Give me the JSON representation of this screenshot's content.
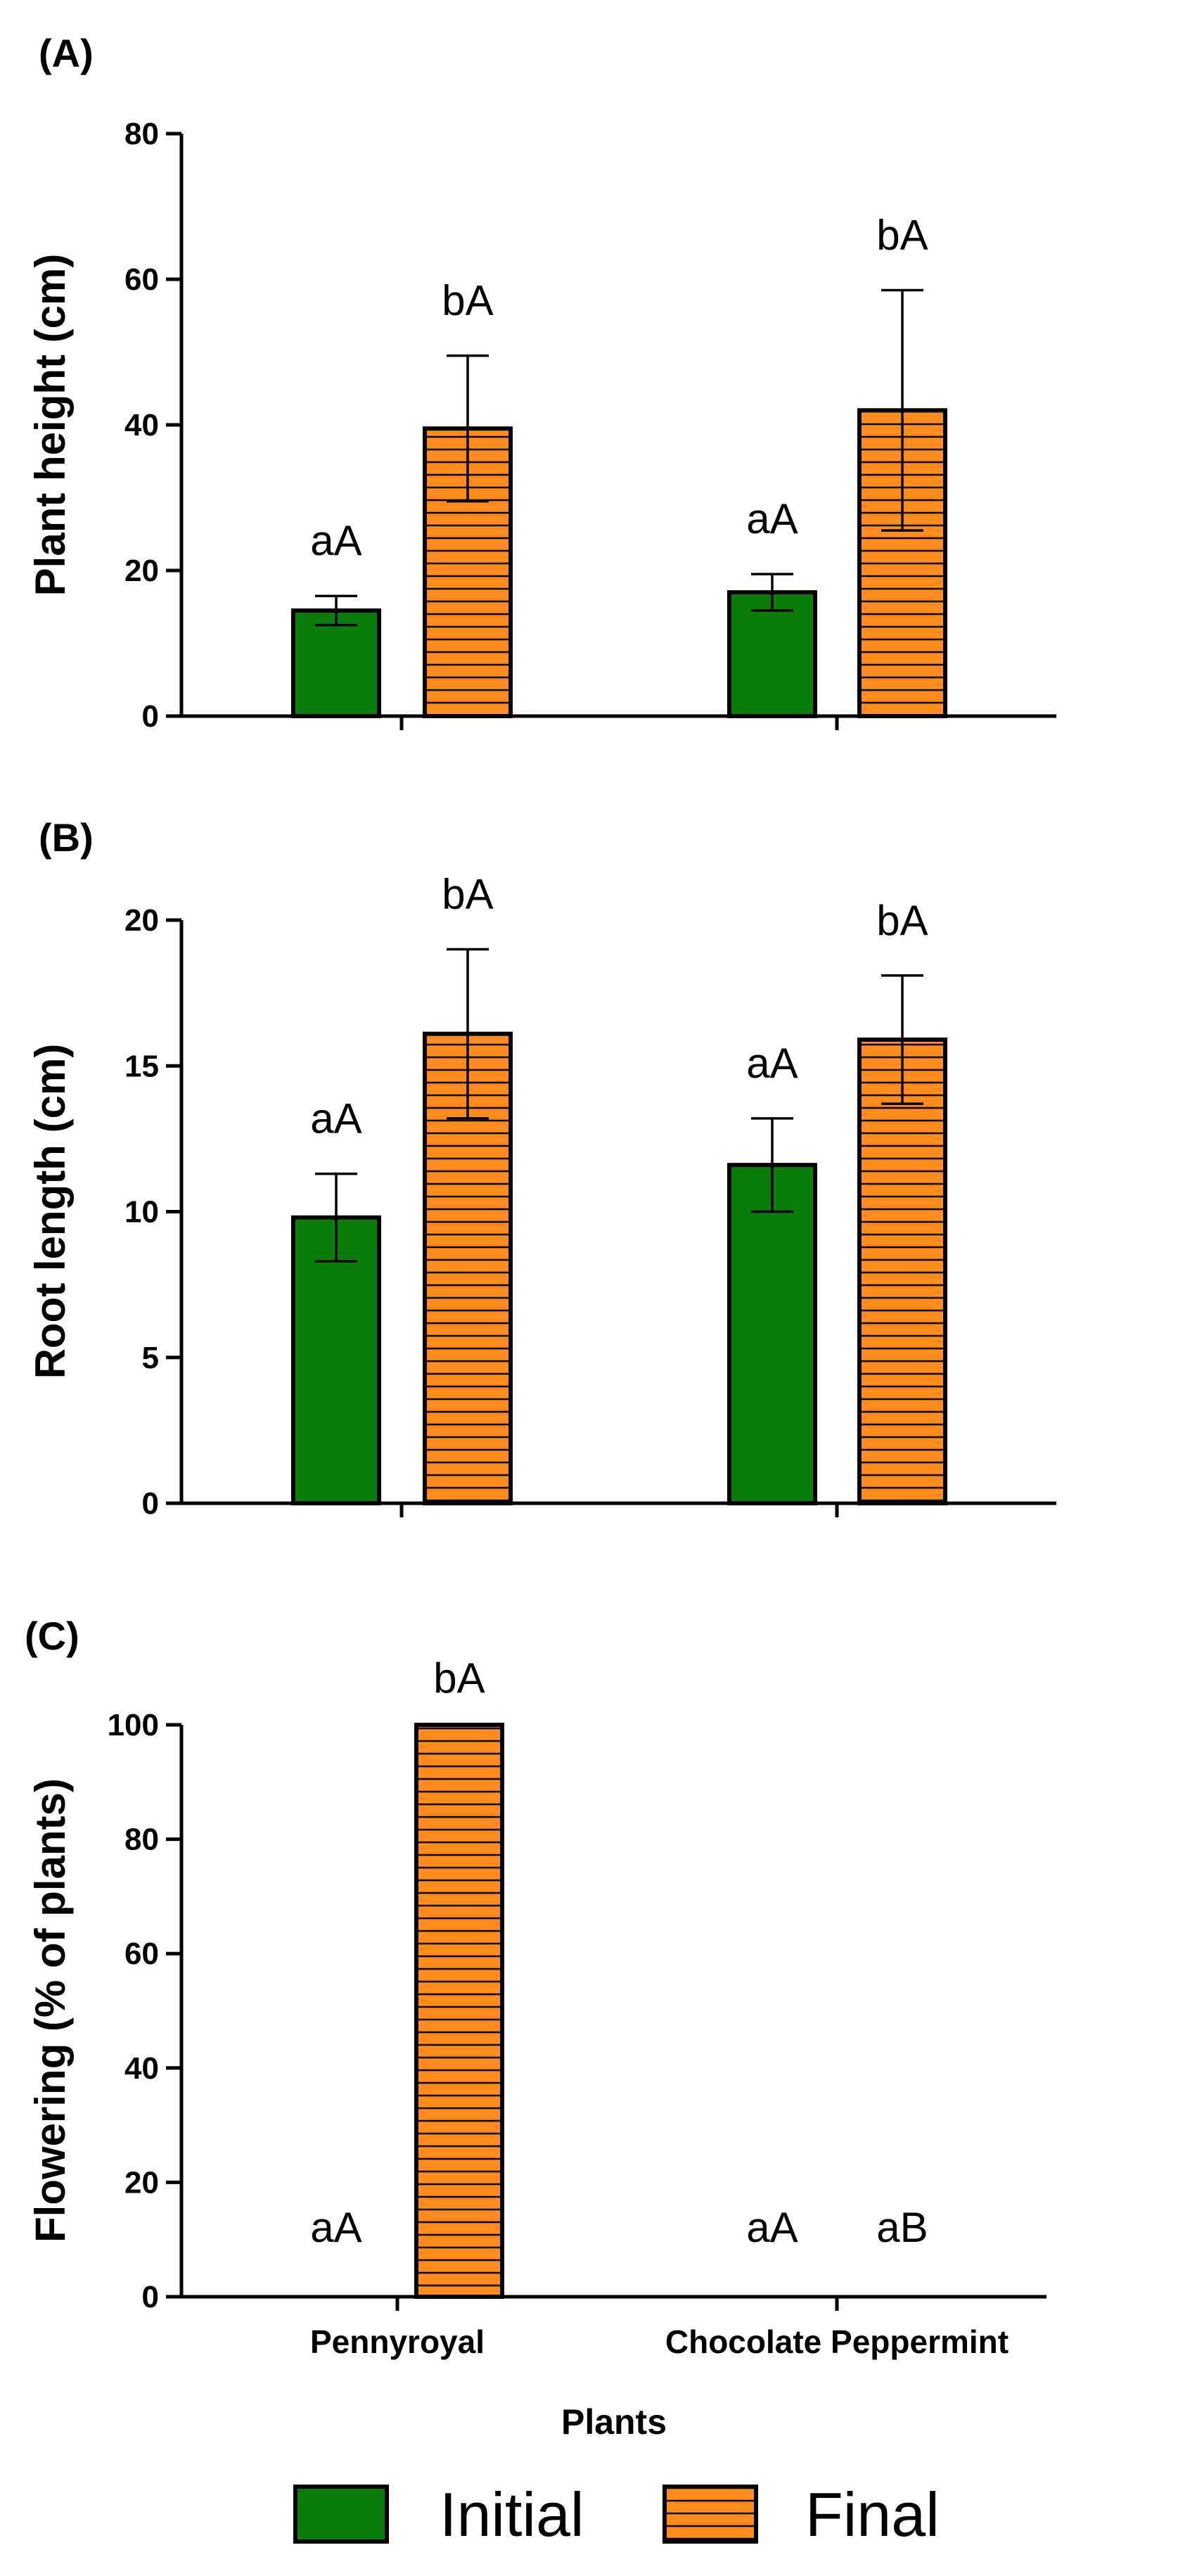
{
  "colors": {
    "initial": "#0b7d0b",
    "final": "#ff8c1a",
    "stripe": "#000000"
  },
  "chart_data": [
    {
      "type": "bar",
      "panel": "(A)",
      "title": "",
      "xlabel": "",
      "ylabel": "Plant height (cm)",
      "ylim": [
        0,
        80
      ],
      "yticks": [
        0,
        20,
        40,
        60,
        80
      ],
      "show_category_labels": false,
      "categories": [
        "Pennyroyal",
        "Chocolate Peppermint"
      ],
      "series": [
        {
          "name": "Initial",
          "values": [
            14.5,
            17
          ],
          "errors": [
            2,
            2.5
          ],
          "labels": [
            "aA",
            "aA"
          ]
        },
        {
          "name": "Final",
          "values": [
            39.5,
            42
          ],
          "errors": [
            10,
            16.5
          ],
          "labels": [
            "bA",
            "bA"
          ]
        }
      ]
    },
    {
      "type": "bar",
      "panel": "(B)",
      "title": "",
      "xlabel": "",
      "ylabel": "Root length (cm)",
      "ylim": [
        0,
        20
      ],
      "yticks": [
        0,
        5,
        10,
        15,
        20
      ],
      "show_category_labels": false,
      "categories": [
        "Pennyroyal",
        "Chocolate Peppermint"
      ],
      "series": [
        {
          "name": "Initial",
          "values": [
            9.8,
            11.6
          ],
          "errors": [
            1.5,
            1.6
          ],
          "labels": [
            "aA",
            "aA"
          ]
        },
        {
          "name": "Final",
          "values": [
            16.1,
            15.9
          ],
          "errors": [
            2.9,
            2.2
          ],
          "labels": [
            "bA",
            "bA"
          ]
        }
      ]
    },
    {
      "type": "bar",
      "panel": "(C)",
      "title": "",
      "xlabel": "Plants",
      "ylabel": "Flowering (% of plants)",
      "ylim": [
        0,
        100
      ],
      "yticks": [
        0,
        20,
        40,
        60,
        80,
        100
      ],
      "show_category_labels": true,
      "categories": [
        "Pennyroyal",
        "Chocolate Peppermint"
      ],
      "series": [
        {
          "name": "Initial",
          "values": [
            0,
            0
          ],
          "errors": [
            0,
            0
          ],
          "labels": [
            "aA",
            "aA"
          ]
        },
        {
          "name": "Final",
          "values": [
            100,
            0
          ],
          "errors": [
            0,
            0
          ],
          "labels": [
            "bA",
            "aB"
          ]
        }
      ]
    }
  ],
  "legend": {
    "position": "bottom-center",
    "entries": [
      "Initial",
      "Final"
    ]
  }
}
